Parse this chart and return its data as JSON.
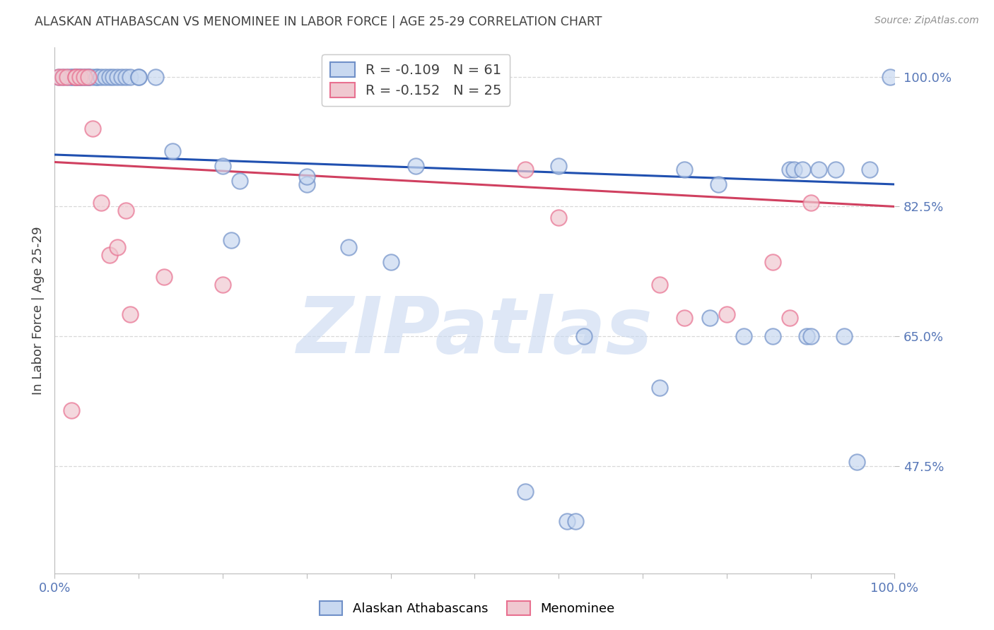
{
  "title": "ALASKAN ATHABASCAN VS MENOMINEE IN LABOR FORCE | AGE 25-29 CORRELATION CHART",
  "source": "Source: ZipAtlas.com",
  "ylabel": "In Labor Force | Age 25-29",
  "xlim": [
    0.0,
    1.0
  ],
  "ylim": [
    0.33,
    1.04
  ],
  "xtick_positions": [
    0.0,
    0.1,
    0.2,
    0.3,
    0.4,
    0.5,
    0.6,
    0.7,
    0.8,
    0.9,
    1.0
  ],
  "xticklabels": [
    "0.0%",
    "",
    "",
    "",
    "",
    "",
    "",
    "",
    "",
    "",
    "100.0%"
  ],
  "ytick_positions": [
    0.475,
    0.65,
    0.825,
    1.0
  ],
  "ytick_labels": [
    "47.5%",
    "65.0%",
    "82.5%",
    "100.0%"
  ],
  "blue_color": "#7090C8",
  "pink_color": "#E87090",
  "blue_face_color": "#C8D8F0",
  "pink_face_color": "#F0C8D0",
  "blue_line_color": "#2050B0",
  "pink_line_color": "#D04060",
  "blue_label": "Alaskan Athabascans",
  "pink_label": "Menominee",
  "legend_text_blue": "R = -0.109   N = 61",
  "legend_text_pink": "R = -0.152   N = 25",
  "blue_scatter_x": [
    0.005,
    0.01,
    0.015,
    0.02,
    0.02,
    0.025,
    0.025,
    0.025,
    0.03,
    0.03,
    0.03,
    0.035,
    0.035,
    0.04,
    0.04,
    0.04,
    0.045,
    0.05,
    0.05,
    0.055,
    0.06,
    0.065,
    0.07,
    0.075,
    0.08,
    0.085,
    0.09,
    0.1,
    0.1,
    0.12,
    0.14,
    0.2,
    0.21,
    0.22,
    0.3,
    0.3,
    0.35,
    0.4,
    0.43,
    0.56,
    0.6,
    0.61,
    0.62,
    0.63,
    0.72,
    0.75,
    0.78,
    0.79,
    0.82,
    0.855,
    0.875,
    0.88,
    0.89,
    0.895,
    0.9,
    0.91,
    0.93,
    0.94,
    0.955,
    0.97,
    0.995
  ],
  "blue_scatter_y": [
    1.0,
    1.0,
    1.0,
    1.0,
    1.0,
    1.0,
    1.0,
    1.0,
    1.0,
    1.0,
    1.0,
    1.0,
    1.0,
    1.0,
    1.0,
    1.0,
    1.0,
    1.0,
    1.0,
    1.0,
    1.0,
    1.0,
    1.0,
    1.0,
    1.0,
    1.0,
    1.0,
    1.0,
    1.0,
    1.0,
    0.9,
    0.88,
    0.78,
    0.86,
    0.855,
    0.865,
    0.77,
    0.75,
    0.88,
    0.44,
    0.88,
    0.4,
    0.4,
    0.65,
    0.58,
    0.875,
    0.675,
    0.855,
    0.65,
    0.65,
    0.875,
    0.875,
    0.875,
    0.65,
    0.65,
    0.875,
    0.875,
    0.65,
    0.48,
    0.875,
    1.0
  ],
  "pink_scatter_x": [
    0.005,
    0.01,
    0.015,
    0.02,
    0.025,
    0.025,
    0.03,
    0.035,
    0.04,
    0.045,
    0.055,
    0.065,
    0.075,
    0.085,
    0.09,
    0.13,
    0.2,
    0.56,
    0.6,
    0.72,
    0.75,
    0.8,
    0.855,
    0.875,
    0.9
  ],
  "pink_scatter_y": [
    1.0,
    1.0,
    1.0,
    0.55,
    1.0,
    1.0,
    1.0,
    1.0,
    1.0,
    0.93,
    0.83,
    0.76,
    0.77,
    0.82,
    0.68,
    0.73,
    0.72,
    0.875,
    0.81,
    0.72,
    0.675,
    0.68,
    0.75,
    0.675,
    0.83
  ],
  "blue_trend": [
    0.895,
    0.855
  ],
  "pink_trend": [
    0.885,
    0.825
  ],
  "watermark_text": "ZIPatlas",
  "watermark_color": "#C8D8F0",
  "background_color": "#FFFFFF",
  "grid_color": "#D8D8D8",
  "title_color": "#404040",
  "tick_label_color": "#5878B8"
}
